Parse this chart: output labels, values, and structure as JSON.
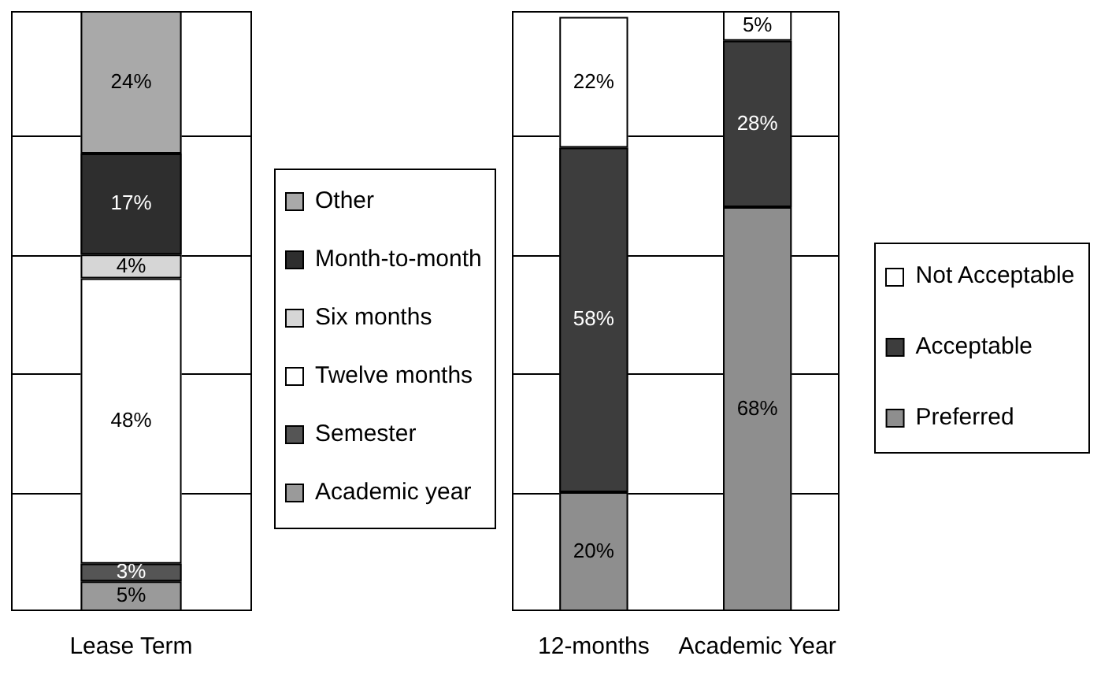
{
  "chart_data": [
    {
      "type": "bar",
      "stacked": true,
      "categories": [
        "Lease Term"
      ],
      "series": [
        {
          "name": "Academic year",
          "color": "#9a9a9a",
          "values": [
            5
          ],
          "value_labels": [
            "5%"
          ]
        },
        {
          "name": "Semester",
          "color": "#555555",
          "values": [
            3
          ],
          "value_labels": [
            "3%"
          ]
        },
        {
          "name": "Twelve months",
          "color": "#ffffff",
          "values": [
            48
          ],
          "value_labels": [
            "48%"
          ]
        },
        {
          "name": "Six months",
          "color": "#d6d6d6",
          "values": [
            4
          ],
          "value_labels": [
            "4%"
          ]
        },
        {
          "name": "Month-to-month",
          "color": "#2e2e2e",
          "values": [
            17
          ],
          "value_labels": [
            "17%"
          ]
        },
        {
          "name": "Other",
          "color": "#a9a9a9",
          "values": [
            24
          ],
          "value_labels": [
            "24%"
          ]
        }
      ],
      "tick_labels": "x",
      "grid": "y",
      "legend": "right"
    },
    {
      "type": "bar",
      "stacked": true,
      "categories": [
        "12-months",
        "Academic Year"
      ],
      "series": [
        {
          "name": "Preferred",
          "color": "#8e8e8e",
          "values": [
            20,
            68
          ],
          "value_labels": [
            "20%",
            "68%"
          ]
        },
        {
          "name": "Acceptable",
          "color": "#3d3d3d",
          "values": [
            58,
            28
          ],
          "value_labels": [
            "58%",
            "28%"
          ]
        },
        {
          "name": "Not Acceptable",
          "color": "#ffffff",
          "values": [
            22,
            5
          ],
          "value_labels": [
            "22%",
            "5%"
          ]
        }
      ],
      "tick_labels": "x",
      "grid": "y",
      "legend": "right"
    }
  ]
}
